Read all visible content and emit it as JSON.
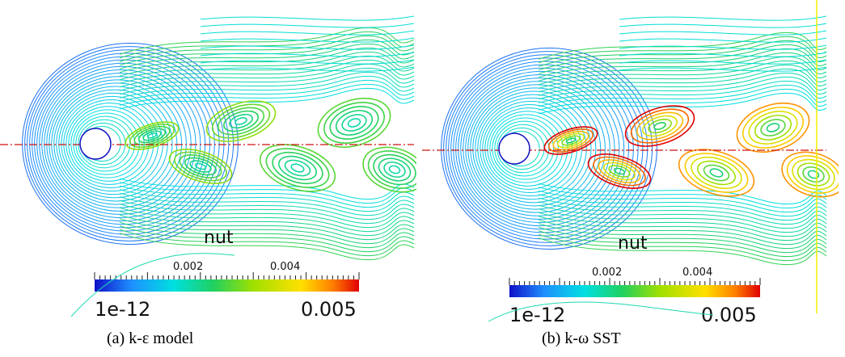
{
  "panels": [
    {
      "id": "a",
      "caption": "(a)  k-ε model",
      "field_name": "nut",
      "tick_labels": [
        "0.002",
        "0.004"
      ],
      "range_min_label": "1e-12",
      "range_max_label": "0.005",
      "max_intensity": 0.55
    },
    {
      "id": "b",
      "caption": "(b) k-ω SST",
      "field_name": "nut",
      "tick_labels": [
        "0.002",
        "0.004"
      ],
      "range_min_label": "1e-12",
      "range_max_label": "0.005",
      "max_intensity": 1.0
    }
  ],
  "colors": {
    "centerline": "#d01010",
    "probe_line": "#f0f000",
    "cylinder_edge": "#1010c0",
    "colormap": [
      "#1010c8",
      "#1e90ff",
      "#00e0e0",
      "#20d060",
      "#a0e000",
      "#ffe000",
      "#ff8000",
      "#e00000"
    ]
  }
}
